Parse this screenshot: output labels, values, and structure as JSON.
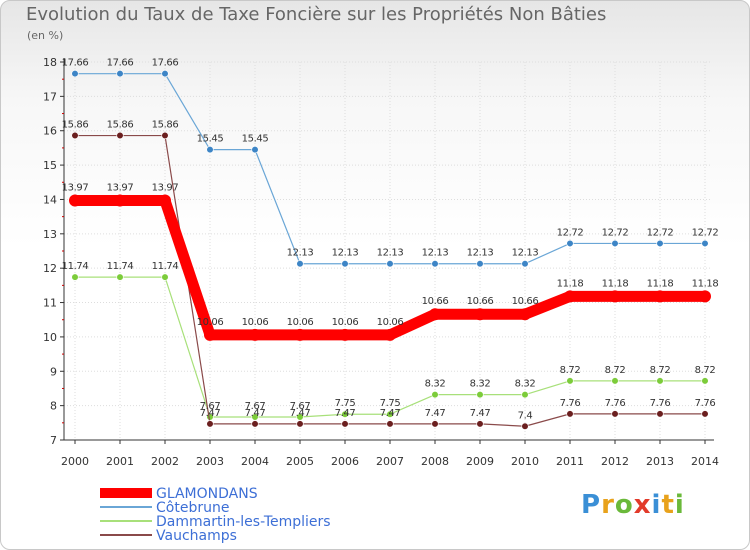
{
  "chart_data": {
    "type": "line",
    "title": "Evolution du Taux de Taxe Foncière sur les Propriétés Non Bâties",
    "unit_label": "(en %)",
    "xlabel": "",
    "ylabel": "",
    "ylim": [
      7,
      18
    ],
    "y_ticks": [
      "7",
      "8",
      "9",
      "10",
      "11",
      "12",
      "13",
      "14",
      "15",
      "16",
      "17",
      "18"
    ],
    "categories": [
      "2000",
      "2001",
      "2002",
      "2003",
      "2004",
      "2005",
      "2006",
      "2007",
      "2008",
      "2009",
      "2010",
      "2011",
      "2012",
      "2013",
      "2014"
    ],
    "grid": true,
    "legend": "bottom-left",
    "series": [
      {
        "name": "GLAMONDANS",
        "color": "#ff0000",
        "emphasis": true,
        "values": [
          13.97,
          13.97,
          13.97,
          10.06,
          10.06,
          10.06,
          10.06,
          10.06,
          10.66,
          10.66,
          10.66,
          11.18,
          11.18,
          11.18,
          11.18
        ],
        "labels": [
          "13.97",
          "13.97",
          "13.97",
          "10.06",
          "10.06",
          "10.06",
          "10.06",
          "10.06",
          "10.66",
          "10.66",
          "10.66",
          "11.18",
          "11.18",
          "11.18",
          "11.18"
        ]
      },
      {
        "name": "Côtebrune",
        "color": "#6aa6d6",
        "marker": "#3d85c6",
        "values": [
          17.66,
          17.66,
          17.66,
          15.45,
          15.45,
          12.13,
          12.13,
          12.13,
          12.13,
          12.13,
          12.13,
          12.72,
          12.72,
          12.72,
          12.72
        ],
        "labels": [
          "17.66",
          "17.66",
          "17.66",
          "15.45",
          "15.45",
          "12.13",
          "12.13",
          "12.13",
          "12.13",
          "12.13",
          "12.13",
          "12.72",
          "12.72",
          "12.72",
          "12.72"
        ]
      },
      {
        "name": "Dammartin-les-Templiers",
        "color": "#a8e07a",
        "marker": "#7ccc3a",
        "values": [
          11.74,
          11.74,
          11.74,
          7.67,
          7.67,
          7.67,
          7.75,
          7.75,
          8.32,
          8.32,
          8.32,
          8.72,
          8.72,
          8.72,
          8.72
        ],
        "labels": [
          "11.74",
          "11.74",
          "11.74",
          "7.67",
          "7.67",
          "7.67",
          "7.75",
          "7.75",
          "8.32",
          "8.32",
          "8.32",
          "8.72",
          "8.72",
          "8.72",
          "8.72"
        ]
      },
      {
        "name": "Vauchamps",
        "color": "#8a4a4a",
        "marker": "#6b1f1f",
        "values": [
          15.86,
          15.86,
          15.86,
          7.47,
          7.47,
          7.47,
          7.47,
          7.47,
          7.47,
          7.47,
          7.4,
          7.76,
          7.76,
          7.76,
          7.76
        ],
        "labels": [
          "15.86",
          "15.86",
          "15.86",
          "7.47",
          "7.47",
          "7.47",
          "7.47",
          "7.47",
          "7.47",
          "7.47",
          "7.4",
          "7.76",
          "7.76",
          "7.76",
          "7.76"
        ]
      }
    ]
  },
  "logo": {
    "letters": [
      "P",
      "r",
      "o",
      "x",
      "i",
      "t",
      "i"
    ],
    "colors": [
      "#3a8fd6",
      "#e8a21c",
      "#6ab93a",
      "#e23a2a",
      "#3a8fd6",
      "#e8a21c",
      "#6ab93a"
    ]
  }
}
